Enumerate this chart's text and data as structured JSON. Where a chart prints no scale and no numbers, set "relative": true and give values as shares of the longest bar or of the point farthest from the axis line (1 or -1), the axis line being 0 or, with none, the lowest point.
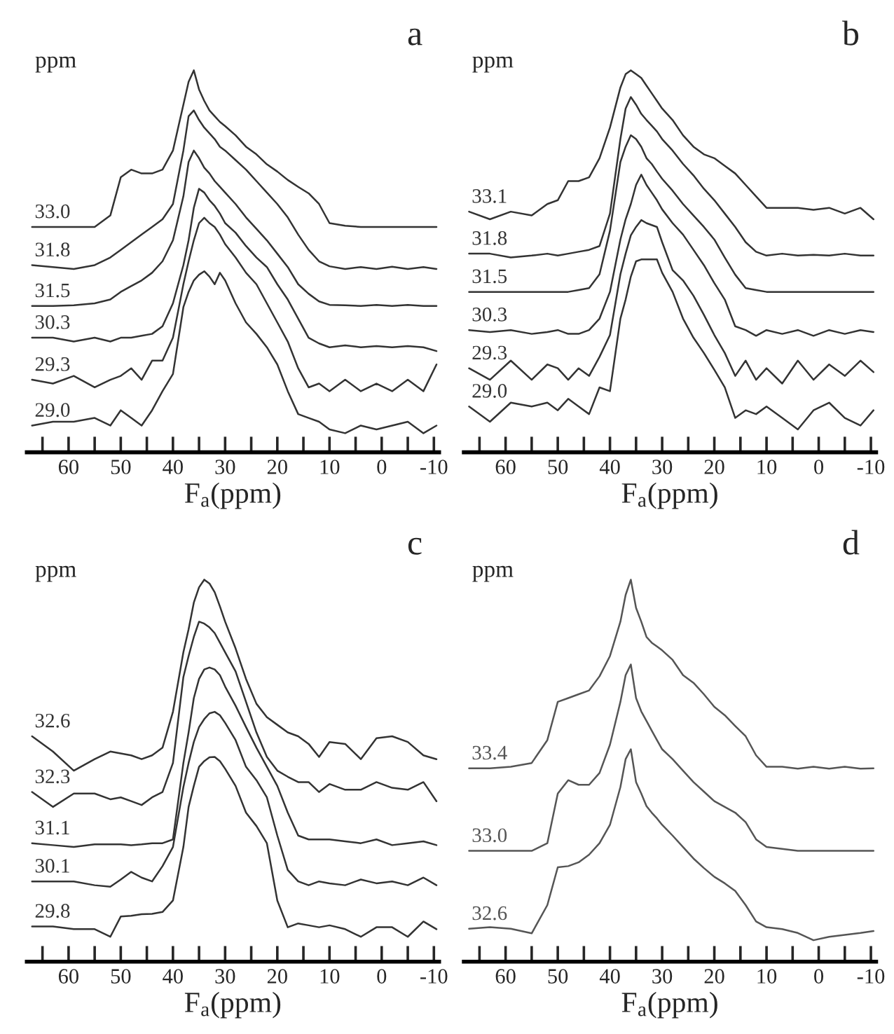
{
  "chart_data": [
    {
      "type": "line",
      "title": "a",
      "xlabel": "F$_{a}$(ppm)",
      "annotations": [
        "ppm"
      ],
      "relative": true,
      "legend": false,
      "xlim": [
        68,
        -11
      ],
      "xticks": [
        {
          "value": 65,
          "label": null
        },
        60,
        {
          "value": 55,
          "label": null
        },
        50,
        {
          "value": 45,
          "label": null
        },
        40,
        {
          "value": 35,
          "label": null
        },
        30,
        {
          "value": 25,
          "label": null
        },
        20,
        {
          "value": 15,
          "label": null
        },
        10,
        {
          "value": 5,
          "label": null
        },
        0,
        {
          "value": -5,
          "label": null
        },
        -10
      ],
      "x": [
        67,
        63,
        59,
        55,
        52,
        50,
        48,
        46,
        44,
        42,
        40,
        38,
        37,
        36,
        35,
        34,
        33,
        32,
        31,
        30,
        28,
        26,
        24,
        22,
        20,
        18,
        16,
        14,
        12,
        10,
        7,
        4,
        1,
        -2,
        -5,
        -8,
        -10.5
      ],
      "series": [
        {
          "name": "33.0",
          "color": "#333333",
          "values": [
            0.59,
            0.59,
            0.59,
            0.59,
            0.62,
            0.72,
            0.74,
            0.73,
            0.73,
            0.74,
            0.79,
            0.91,
            0.97,
            1.0,
            0.95,
            0.92,
            0.895,
            0.88,
            0.865,
            0.854,
            0.83,
            0.8,
            0.78,
            0.754,
            0.735,
            0.713,
            0.695,
            0.678,
            0.65,
            0.6,
            0.593,
            0.59,
            0.59,
            0.59,
            0.59,
            0.59,
            0.59
          ]
        },
        {
          "name": "31.8",
          "color": "#333333",
          "values": [
            0.49,
            0.485,
            0.48,
            0.49,
            0.51,
            0.53,
            0.55,
            0.57,
            0.59,
            0.61,
            0.65,
            0.79,
            0.88,
            0.895,
            0.87,
            0.85,
            0.835,
            0.82,
            0.8,
            0.79,
            0.765,
            0.74,
            0.71,
            0.68,
            0.65,
            0.615,
            0.57,
            0.53,
            0.5,
            0.487,
            0.48,
            0.485,
            0.48,
            0.486,
            0.48,
            0.485,
            0.48
          ]
        },
        {
          "name": "31.5",
          "color": "#333333",
          "values": [
            0.383,
            0.383,
            0.385,
            0.39,
            0.4,
            0.42,
            0.435,
            0.45,
            0.47,
            0.5,
            0.555,
            0.67,
            0.76,
            0.79,
            0.77,
            0.745,
            0.73,
            0.71,
            0.695,
            0.68,
            0.65,
            0.615,
            0.585,
            0.555,
            0.52,
            0.485,
            0.44,
            0.415,
            0.395,
            0.386,
            0.385,
            0.383,
            0.386,
            0.383,
            0.386,
            0.383,
            0.383
          ]
        },
        {
          "name": "30.3",
          "color": "#333333",
          "values": [
            0.3,
            0.3,
            0.29,
            0.3,
            0.29,
            0.3,
            0.3,
            0.305,
            0.31,
            0.33,
            0.39,
            0.49,
            0.555,
            0.64,
            0.69,
            0.68,
            0.66,
            0.645,
            0.625,
            0.6,
            0.575,
            0.54,
            0.51,
            0.485,
            0.44,
            0.4,
            0.35,
            0.3,
            0.285,
            0.275,
            0.28,
            0.275,
            0.278,
            0.275,
            0.278,
            0.275,
            0.265
          ]
        },
        {
          "name": "29.3",
          "color": "#333333",
          "values": [
            0.19,
            0.18,
            0.2,
            0.17,
            0.19,
            0.2,
            0.22,
            0.19,
            0.24,
            0.24,
            0.3,
            0.44,
            0.5,
            0.555,
            0.6,
            0.614,
            0.6,
            0.59,
            0.57,
            0.545,
            0.51,
            0.47,
            0.44,
            0.39,
            0.34,
            0.29,
            0.22,
            0.17,
            0.18,
            0.16,
            0.19,
            0.16,
            0.18,
            0.16,
            0.19,
            0.16,
            0.23
          ]
        },
        {
          "name": "29.0",
          "color": "#333333",
          "values": [
            0.07,
            0.08,
            0.08,
            0.09,
            0.07,
            0.11,
            0.09,
            0.07,
            0.11,
            0.16,
            0.205,
            0.38,
            0.42,
            0.45,
            0.465,
            0.474,
            0.46,
            0.44,
            0.47,
            0.45,
            0.39,
            0.34,
            0.31,
            0.275,
            0.23,
            0.16,
            0.1,
            0.09,
            0.08,
            0.06,
            0.05,
            0.07,
            0.06,
            0.07,
            0.08,
            0.05,
            0.07
          ]
        }
      ]
    },
    {
      "type": "line",
      "title": "b",
      "xlabel": "F$_{a}$(ppm)",
      "annotations": [
        "ppm"
      ],
      "relative": true,
      "legend": false,
      "xlim": [
        68,
        -11
      ],
      "xticks": [
        {
          "value": 65,
          "label": null
        },
        60,
        {
          "value": 55,
          "label": null
        },
        50,
        {
          "value": 45,
          "label": null
        },
        40,
        {
          "value": 35,
          "label": null
        },
        30,
        {
          "value": 25,
          "label": null
        },
        20,
        {
          "value": 15,
          "label": null
        },
        10,
        {
          "value": 5,
          "label": null
        },
        0,
        {
          "value": -5,
          "label": null
        },
        -10
      ],
      "x": [
        67,
        63,
        59,
        55,
        52,
        50,
        48,
        46,
        44,
        42,
        40,
        38,
        37,
        36,
        35,
        34,
        33,
        32,
        31,
        30,
        28,
        26,
        24,
        22,
        20,
        18,
        16,
        14,
        12,
        10,
        7,
        4,
        1,
        -2,
        -5,
        -8,
        -10.5
      ],
      "series": [
        {
          "name": "33.1",
          "color": "#333333",
          "values": [
            0.63,
            0.61,
            0.63,
            0.62,
            0.65,
            0.66,
            0.71,
            0.71,
            0.72,
            0.77,
            0.85,
            0.955,
            0.99,
            1.0,
            0.99,
            0.98,
            0.96,
            0.94,
            0.92,
            0.9,
            0.87,
            0.83,
            0.8,
            0.78,
            0.77,
            0.75,
            0.73,
            0.7,
            0.67,
            0.64,
            0.64,
            0.64,
            0.635,
            0.64,
            0.625,
            0.64,
            0.61
          ]
        },
        {
          "name": "31.8",
          "color": "#333333",
          "values": [
            0.52,
            0.52,
            0.51,
            0.515,
            0.52,
            0.515,
            0.52,
            0.525,
            0.53,
            0.54,
            0.625,
            0.82,
            0.9,
            0.93,
            0.91,
            0.886,
            0.87,
            0.855,
            0.84,
            0.82,
            0.79,
            0.755,
            0.725,
            0.69,
            0.66,
            0.625,
            0.59,
            0.55,
            0.525,
            0.515,
            0.52,
            0.515,
            0.517,
            0.515,
            0.52,
            0.515,
            0.515
          ]
        },
        {
          "name": "31.5",
          "color": "#333333",
          "values": [
            0.42,
            0.42,
            0.42,
            0.42,
            0.42,
            0.42,
            0.42,
            0.425,
            0.43,
            0.466,
            0.58,
            0.76,
            0.8,
            0.83,
            0.82,
            0.8,
            0.77,
            0.755,
            0.735,
            0.716,
            0.685,
            0.65,
            0.62,
            0.59,
            0.557,
            0.51,
            0.465,
            0.43,
            0.425,
            0.42,
            0.42,
            0.42,
            0.42,
            0.42,
            0.42,
            0.42,
            0.42
          ]
        },
        {
          "name": "30.3",
          "color": "#333333",
          "values": [
            0.32,
            0.315,
            0.32,
            0.31,
            0.315,
            0.32,
            0.31,
            0.31,
            0.32,
            0.35,
            0.42,
            0.557,
            0.61,
            0.65,
            0.7,
            0.727,
            0.7,
            0.68,
            0.66,
            0.636,
            0.6,
            0.57,
            0.53,
            0.49,
            0.443,
            0.4,
            0.33,
            0.32,
            0.305,
            0.32,
            0.31,
            0.32,
            0.305,
            0.32,
            0.31,
            0.32,
            0.315
          ]
        },
        {
          "name": "29.3",
          "color": "#333333",
          "values": [
            0.22,
            0.19,
            0.24,
            0.19,
            0.23,
            0.22,
            0.19,
            0.22,
            0.2,
            0.25,
            0.307,
            0.466,
            0.52,
            0.568,
            0.59,
            0.608,
            0.6,
            0.595,
            0.59,
            0.55,
            0.477,
            0.45,
            0.41,
            0.36,
            0.307,
            0.26,
            0.2,
            0.24,
            0.19,
            0.22,
            0.18,
            0.24,
            0.19,
            0.23,
            0.2,
            0.24,
            0.21
          ]
        },
        {
          "name": "29.0",
          "color": "#333333",
          "values": [
            0.12,
            0.08,
            0.13,
            0.12,
            0.13,
            0.11,
            0.14,
            0.12,
            0.1,
            0.17,
            0.16,
            0.35,
            0.4,
            0.46,
            0.5,
            0.505,
            0.505,
            0.505,
            0.505,
            0.47,
            0.42,
            0.35,
            0.3,
            0.26,
            0.216,
            0.17,
            0.09,
            0.11,
            0.1,
            0.12,
            0.09,
            0.06,
            0.11,
            0.13,
            0.09,
            0.07,
            0.11
          ]
        }
      ]
    },
    {
      "type": "line",
      "title": "c",
      "xlabel": "F$_{a}$(ppm)",
      "annotations": [
        "ppm"
      ],
      "relative": true,
      "legend": false,
      "xlim": [
        68,
        -11
      ],
      "xticks": [
        {
          "value": 65,
          "label": null
        },
        60,
        {
          "value": 55,
          "label": null
        },
        50,
        {
          "value": 45,
          "label": null
        },
        40,
        {
          "value": 35,
          "label": null
        },
        30,
        {
          "value": 25,
          "label": null
        },
        20,
        {
          "value": 15,
          "label": null
        },
        10,
        {
          "value": 5,
          "label": null
        },
        0,
        {
          "value": -5,
          "label": null
        },
        -10
      ],
      "x": [
        67,
        63,
        59,
        55,
        52,
        50,
        48,
        46,
        44,
        42,
        40,
        38,
        37,
        36,
        35,
        34,
        33,
        32,
        31,
        30,
        28,
        26,
        24,
        22,
        20,
        18,
        16,
        14,
        12,
        10,
        7,
        4,
        1,
        -2,
        -5,
        -8,
        -10.5
      ],
      "series": [
        {
          "name": "32.6",
          "color": "#333333",
          "values": [
            0.59,
            0.55,
            0.5,
            0.53,
            0.55,
            0.545,
            0.54,
            0.53,
            0.54,
            0.56,
            0.654,
            0.81,
            0.87,
            0.94,
            0.98,
            1.0,
            0.99,
            0.967,
            0.93,
            0.89,
            0.82,
            0.74,
            0.675,
            0.64,
            0.62,
            0.6,
            0.59,
            0.57,
            0.536,
            0.575,
            0.57,
            0.53,
            0.585,
            0.59,
            0.575,
            0.54,
            0.53
          ]
        },
        {
          "name": "32.3",
          "color": "#333333",
          "values": [
            0.444,
            0.405,
            0.44,
            0.44,
            0.425,
            0.43,
            0.42,
            0.41,
            0.43,
            0.444,
            0.52,
            0.745,
            0.8,
            0.85,
            0.89,
            0.885,
            0.875,
            0.86,
            0.835,
            0.81,
            0.76,
            0.68,
            0.6,
            0.536,
            0.5,
            0.484,
            0.47,
            0.47,
            0.444,
            0.465,
            0.45,
            0.45,
            0.47,
            0.455,
            0.45,
            0.47,
            0.42
          ]
        },
        {
          "name": "31.1",
          "color": "#333333",
          "values": [
            0.31,
            0.305,
            0.3,
            0.307,
            0.307,
            0.307,
            0.305,
            0.307,
            0.31,
            0.31,
            0.32,
            0.52,
            0.6,
            0.69,
            0.74,
            0.765,
            0.77,
            0.765,
            0.75,
            0.72,
            0.67,
            0.614,
            0.56,
            0.51,
            0.46,
            0.39,
            0.33,
            0.32,
            0.32,
            0.32,
            0.315,
            0.31,
            0.32,
            0.305,
            0.31,
            0.315,
            0.305
          ]
        },
        {
          "name": "30.1",
          "color": "#333333",
          "values": [
            0.21,
            0.21,
            0.21,
            0.2,
            0.196,
            0.215,
            0.235,
            0.22,
            0.21,
            0.25,
            0.3,
            0.457,
            0.52,
            0.575,
            0.614,
            0.635,
            0.65,
            0.654,
            0.645,
            0.625,
            0.58,
            0.51,
            0.475,
            0.43,
            0.33,
            0.24,
            0.21,
            0.2,
            0.21,
            0.205,
            0.2,
            0.215,
            0.205,
            0.21,
            0.2,
            0.22,
            0.2
          ]
        },
        {
          "name": "29.8",
          "color": "#333333",
          "values": [
            0.092,
            0.092,
            0.085,
            0.085,
            0.065,
            0.118,
            0.12,
            0.124,
            0.125,
            0.13,
            0.16,
            0.3,
            0.405,
            0.46,
            0.51,
            0.525,
            0.535,
            0.536,
            0.525,
            0.505,
            0.46,
            0.39,
            0.355,
            0.31,
            0.16,
            0.09,
            0.1,
            0.095,
            0.09,
            0.095,
            0.085,
            0.065,
            0.09,
            0.09,
            0.065,
            0.105,
            0.085
          ]
        }
      ]
    },
    {
      "type": "line",
      "title": "d",
      "xlabel": "F$_{a}$(ppm)",
      "annotations": [
        "ppm"
      ],
      "relative": true,
      "legend": false,
      "xlim": [
        68,
        -11
      ],
      "xticks": [
        {
          "value": 65,
          "label": null
        },
        60,
        {
          "value": 55,
          "label": null
        },
        50,
        {
          "value": 45,
          "label": null
        },
        40,
        {
          "value": 35,
          "label": null
        },
        30,
        {
          "value": 25,
          "label": null
        },
        20,
        {
          "value": 15,
          "label": null
        },
        10,
        {
          "value": 5,
          "label": null
        },
        0,
        {
          "value": -5,
          "label": null
        },
        -10
      ],
      "x": [
        67,
        63,
        59,
        55,
        52,
        50,
        48,
        46,
        44,
        42,
        40,
        38,
        37,
        36,
        35,
        34,
        33,
        32,
        31,
        30,
        28,
        26,
        24,
        22,
        20,
        18,
        16,
        14,
        12,
        10,
        7,
        4,
        1,
        -2,
        -5,
        -8,
        -10.5
      ],
      "series": [
        {
          "name": "33.4",
          "color": "#555555",
          "values": [
            0.506,
            0.506,
            0.51,
            0.52,
            0.58,
            0.68,
            0.69,
            0.7,
            0.71,
            0.747,
            0.8,
            0.89,
            0.96,
            1.0,
            0.926,
            0.89,
            0.85,
            0.835,
            0.825,
            0.815,
            0.79,
            0.75,
            0.73,
            0.7,
            0.667,
            0.645,
            0.617,
            0.59,
            0.54,
            0.51,
            0.51,
            0.505,
            0.51,
            0.505,
            0.51,
            0.505,
            0.506
          ]
        },
        {
          "name": "33.0",
          "color": "#555555",
          "values": [
            0.29,
            0.29,
            0.29,
            0.29,
            0.31,
            0.44,
            0.475,
            0.463,
            0.463,
            0.494,
            0.568,
            0.68,
            0.75,
            0.778,
            0.69,
            0.655,
            0.63,
            0.605,
            0.58,
            0.556,
            0.53,
            0.5,
            0.47,
            0.445,
            0.42,
            0.405,
            0.39,
            0.365,
            0.32,
            0.3,
            0.295,
            0.29,
            0.29,
            0.29,
            0.29,
            0.29,
            0.29
          ]
        },
        {
          "name": "32.6",
          "color": "#555555",
          "values": [
            0.086,
            0.09,
            0.086,
            0.074,
            0.148,
            0.247,
            0.25,
            0.26,
            0.28,
            0.31,
            0.358,
            0.457,
            0.53,
            0.556,
            0.47,
            0.44,
            0.407,
            0.39,
            0.375,
            0.358,
            0.33,
            0.3,
            0.27,
            0.245,
            0.222,
            0.205,
            0.185,
            0.148,
            0.105,
            0.09,
            0.085,
            0.075,
            0.056,
            0.065,
            0.07,
            0.075,
            0.08
          ]
        }
      ]
    }
  ]
}
